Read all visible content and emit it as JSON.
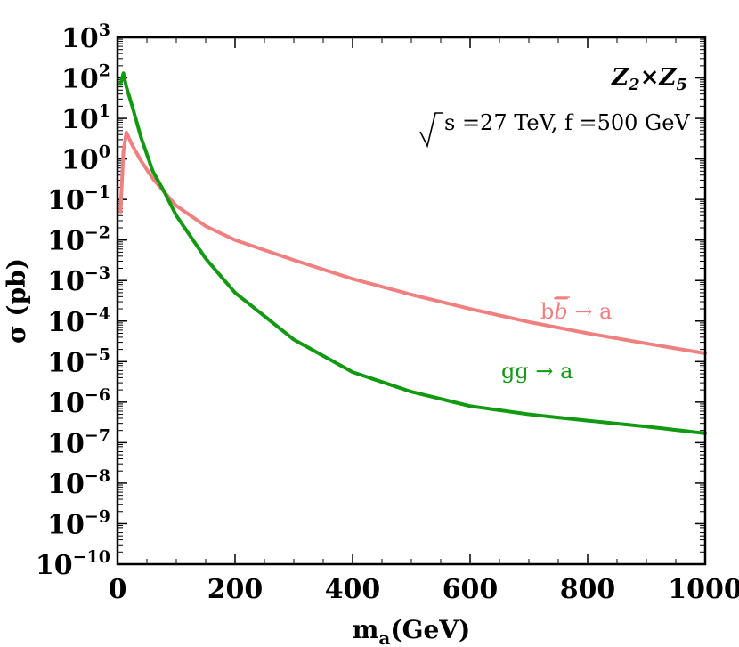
{
  "chart_data": {
    "type": "line",
    "xlabel": "m",
    "xlabel_sub": "a",
    "xlabel_unit": "(GeV)",
    "ylabel": "σ (pb)",
    "xlim": [
      0,
      1000
    ],
    "ylim_log10": [
      -10,
      3
    ],
    "y_scale": "log",
    "grid": false,
    "x_ticks": [
      0,
      200,
      400,
      600,
      800,
      1000
    ],
    "y_tick_base": "10",
    "y_tick_exponents": [
      3,
      2,
      1,
      0,
      -1,
      -2,
      -3,
      -4,
      -5,
      -6,
      -7,
      -8,
      -9,
      -10
    ],
    "annotations": {
      "model_main": "Z",
      "model_sub1": "2",
      "model_times": "×",
      "model_sub2": "5",
      "energy_rest": "s =27 TeV, f =500 GeV"
    },
    "series": [
      {
        "name": "gg → a",
        "color": "#119911",
        "x": [
          5,
          10,
          15,
          25,
          40,
          60,
          80,
          100,
          150,
          200,
          300,
          400,
          500,
          600,
          700,
          800,
          900,
          1000
        ],
        "y": [
          70,
          130,
          60,
          20,
          3.4,
          0.5,
          0.15,
          0.04,
          0.0035,
          0.0005,
          3.5e-05,
          5.5e-06,
          1.8e-06,
          8e-07,
          5e-07,
          3.5e-07,
          2.5e-07,
          1.7e-07
        ]
      },
      {
        "name": "b b̄ → a",
        "color": "#f08080",
        "x": [
          5,
          10,
          15,
          25,
          40,
          60,
          80,
          100,
          150,
          200,
          300,
          400,
          500,
          600,
          700,
          800,
          900,
          1000
        ],
        "y": [
          0.05,
          1.5,
          4.5,
          2.2,
          0.9,
          0.33,
          0.15,
          0.07,
          0.022,
          0.01,
          0.0032,
          0.0011,
          0.00045,
          0.0002,
          9.5e-05,
          5e-05,
          2.8e-05,
          1.6e-05
        ]
      }
    ],
    "legend_labels": {
      "bb_prefix": "b",
      "bb_bar": "b",
      "bb_suffix": " → a",
      "gg": "gg → a"
    }
  }
}
